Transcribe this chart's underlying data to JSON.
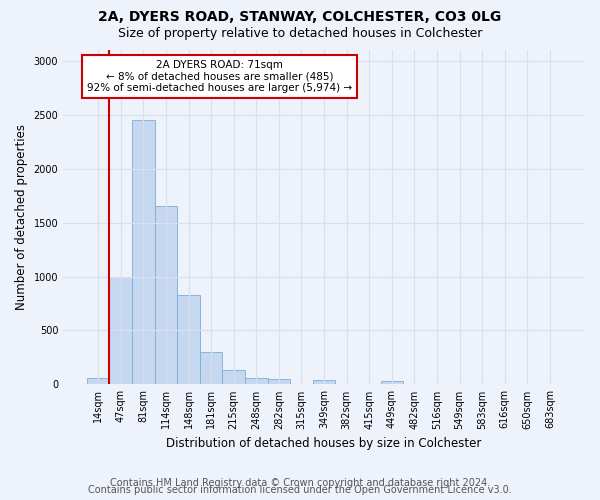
{
  "title1": "2A, DYERS ROAD, STANWAY, COLCHESTER, CO3 0LG",
  "title2": "Size of property relative to detached houses in Colchester",
  "xlabel": "Distribution of detached houses by size in Colchester",
  "ylabel": "Number of detached properties",
  "categories": [
    "14sqm",
    "47sqm",
    "81sqm",
    "114sqm",
    "148sqm",
    "181sqm",
    "215sqm",
    "248sqm",
    "282sqm",
    "315sqm",
    "349sqm",
    "382sqm",
    "415sqm",
    "449sqm",
    "482sqm",
    "516sqm",
    "549sqm",
    "583sqm",
    "616sqm",
    "650sqm",
    "683sqm"
  ],
  "values": [
    60,
    1000,
    2450,
    1650,
    830,
    300,
    130,
    55,
    50,
    0,
    45,
    0,
    0,
    30,
    0,
    0,
    0,
    0,
    0,
    0,
    0
  ],
  "bar_color": "#c5d8f0",
  "bar_edge_color": "#7aaed6",
  "red_line_x": 1,
  "annotation_text": "2A DYERS ROAD: 71sqm\n← 8% of detached houses are smaller (485)\n92% of semi-detached houses are larger (5,974) →",
  "annotation_box_color": "#ffffff",
  "annotation_box_edge_color": "#cc0000",
  "ylim": [
    0,
    3100
  ],
  "yticks": [
    0,
    500,
    1000,
    1500,
    2000,
    2500,
    3000
  ],
  "footer1": "Contains HM Land Registry data © Crown copyright and database right 2024.",
  "footer2": "Contains public sector information licensed under the Open Government Licence v3.0.",
  "background_color": "#eef2fb",
  "plot_bg_color": "#eef2fb",
  "grid_color": "#d8dff0",
  "title_fontsize": 10,
  "subtitle_fontsize": 9,
  "axis_label_fontsize": 8.5,
  "tick_fontsize": 7,
  "footer_fontsize": 7,
  "annotation_fontsize": 7.5
}
